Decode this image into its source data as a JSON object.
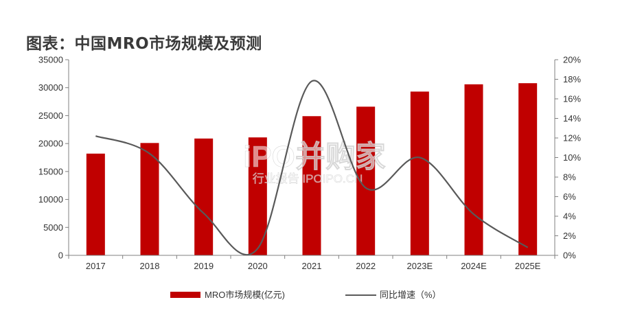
{
  "title": "图表：中国MRO市场规模及预测",
  "watermark": {
    "main": "iPO并购家",
    "sub": "行业报告 IPOIPO.CN"
  },
  "colors": {
    "bar": "#c00000",
    "line": "#595959",
    "axis": "#7f7f7f",
    "text": "#333333"
  },
  "chart_data": {
    "type": "bar",
    "title": "图表：中国MRO市场规模及预测",
    "categories": [
      "2017",
      "2018",
      "2019",
      "2020",
      "2021",
      "2022",
      "2023E",
      "2024E",
      "2025E"
    ],
    "series": [
      {
        "name": "MRO市场规模(亿元)",
        "type": "bar",
        "axis": "left",
        "values": [
          18200,
          20100,
          20900,
          21100,
          24900,
          26600,
          29300,
          30600,
          30800
        ]
      },
      {
        "name": "同比增速（%）",
        "type": "line",
        "axis": "right",
        "values": [
          12.2,
          10.4,
          4.3,
          0.7,
          17.8,
          6.9,
          10.0,
          4.2,
          0.8
        ]
      }
    ],
    "y_left": {
      "ylim": [
        0,
        35000
      ],
      "ticks": [
        "0",
        "5000",
        "10000",
        "15000",
        "20000",
        "25000",
        "30000",
        "35000"
      ]
    },
    "y_right": {
      "ylim": [
        0,
        20
      ],
      "ticks": [
        "0%",
        "2%",
        "4%",
        "6%",
        "8%",
        "10%",
        "12%",
        "14%",
        "16%",
        "18%",
        "20%"
      ]
    },
    "grid": false,
    "legend": "bottom"
  }
}
